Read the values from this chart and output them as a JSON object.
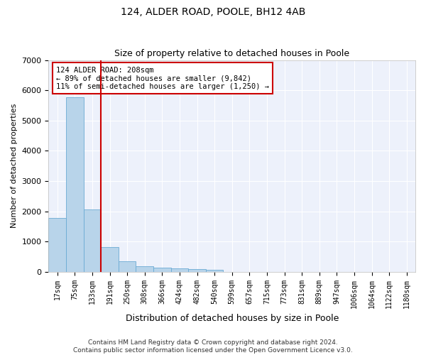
{
  "title": "124, ALDER ROAD, POOLE, BH12 4AB",
  "subtitle": "Size of property relative to detached houses in Poole",
  "xlabel": "Distribution of detached houses by size in Poole",
  "ylabel": "Number of detached properties",
  "bar_color": "#b8d4ea",
  "bar_edge_color": "#6aaad4",
  "vline_color": "#cc0000",
  "vline_x_index": 2.5,
  "categories": [
    "17sqm",
    "75sqm",
    "133sqm",
    "191sqm",
    "250sqm",
    "308sqm",
    "366sqm",
    "424sqm",
    "482sqm",
    "540sqm",
    "599sqm",
    "657sqm",
    "715sqm",
    "773sqm",
    "831sqm",
    "889sqm",
    "947sqm",
    "1006sqm",
    "1064sqm",
    "1122sqm",
    "1180sqm"
  ],
  "values": [
    1780,
    5780,
    2060,
    820,
    340,
    195,
    130,
    110,
    100,
    70,
    0,
    0,
    0,
    0,
    0,
    0,
    0,
    0,
    0,
    0,
    0
  ],
  "ylim": [
    0,
    7000
  ],
  "yticks": [
    0,
    1000,
    2000,
    3000,
    4000,
    5000,
    6000,
    7000
  ],
  "annotation_line1": "124 ALDER ROAD: 208sqm",
  "annotation_line2": "← 89% of detached houses are smaller (9,842)",
  "annotation_line3": "11% of semi-detached houses are larger (1,250) →",
  "footer_line1": "Contains HM Land Registry data © Crown copyright and database right 2024.",
  "footer_line2": "Contains public sector information licensed under the Open Government Licence v3.0.",
  "background_color": "#edf1fb",
  "grid_color": "#ffffff",
  "fig_bg_color": "#ffffff",
  "title_fontsize": 10,
  "subtitle_fontsize": 9,
  "xlabel_fontsize": 9,
  "ylabel_fontsize": 8,
  "tick_fontsize": 7,
  "annotation_fontsize": 7.5,
  "footer_fontsize": 6.5
}
